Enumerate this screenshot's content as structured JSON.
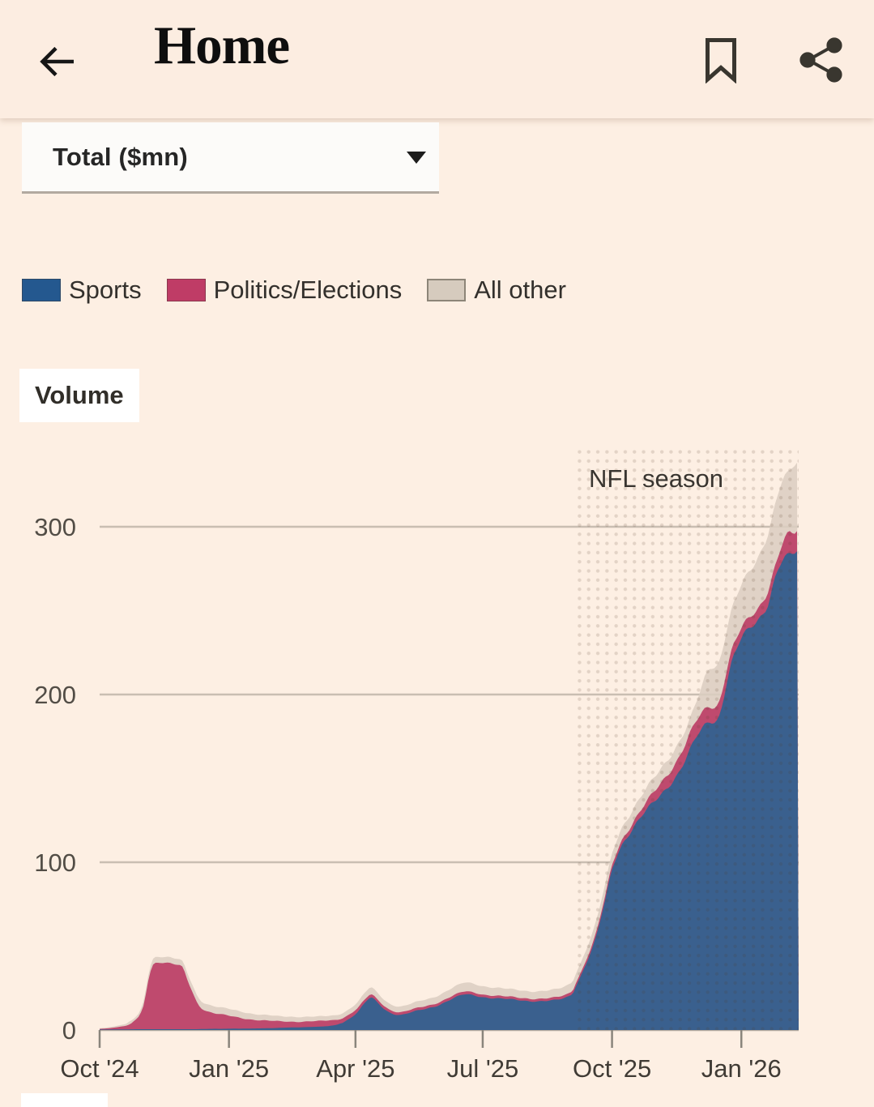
{
  "header": {
    "title": "Home"
  },
  "dropdown": {
    "value": "Total ($mn)"
  },
  "chart_data": {
    "type": "area",
    "stacked": true,
    "title": "Volume",
    "units_selector": "Total ($mn)",
    "annotation": "NFL season",
    "legend_position": "top",
    "grid": "horizontal",
    "background": "#fdefe3",
    "x_ticks": [
      "Oct '24",
      "Jan '25",
      "Apr '25",
      "Jul '25",
      "Oct '25",
      "Jan '26"
    ],
    "x_tick_t": [
      0,
      0.185,
      0.366,
      0.548,
      0.733,
      0.918
    ],
    "y_ticks": [
      0,
      100,
      200,
      300
    ],
    "ylim": [
      0,
      349
    ],
    "nfl_region_t": [
      0.68,
      1.0
    ],
    "series": [
      {
        "name": "Sports",
        "color": "#3a608e",
        "legend_color": "#24588f"
      },
      {
        "name": "Politics/Elections",
        "color": "#bf4a6e",
        "legend_color": "#bf3c66"
      },
      {
        "name": "All other",
        "color": "rgba(219,206,193,0.87)",
        "legend_color": "#d6cbbe",
        "legend_border": "#8d8578"
      }
    ],
    "columns": [
      "t",
      "sports",
      "politics_elections",
      "all_other"
    ],
    "points": [
      [
        0,
        0.3,
        0.4,
        0.4
      ],
      [
        0.014,
        0.3,
        0.8,
        0.6
      ],
      [
        0.028,
        0.4,
        1.5,
        0.9
      ],
      [
        0.042,
        0.4,
        2.8,
        1.2
      ],
      [
        0.056,
        0.5,
        7,
        1.8
      ],
      [
        0.063,
        0.5,
        14,
        2.5
      ],
      [
        0.07,
        0.5,
        30,
        3
      ],
      [
        0.076,
        0.5,
        38.5,
        3.5
      ],
      [
        0.085,
        0.5,
        40.5,
        3.5
      ],
      [
        0.098,
        0.5,
        40,
        3.5
      ],
      [
        0.112,
        0.5,
        38.5,
        3.5
      ],
      [
        0.119,
        0.5,
        36.5,
        3.5
      ],
      [
        0.126,
        0.5,
        29,
        4
      ],
      [
        0.133,
        0.5,
        22,
        4.2
      ],
      [
        0.14,
        0.5,
        15.5,
        4.2
      ],
      [
        0.147,
        0.6,
        12,
        4.2
      ],
      [
        0.161,
        0.7,
        9.5,
        4.2
      ],
      [
        0.175,
        0.7,
        8.2,
        4
      ],
      [
        0.189,
        0.8,
        7,
        4
      ],
      [
        0.203,
        0.8,
        6.2,
        3.8
      ],
      [
        0.217,
        0.9,
        5.5,
        3.6
      ],
      [
        0.231,
        1,
        5,
        3.4
      ],
      [
        0.245,
        1.1,
        4.5,
        3.2
      ],
      [
        0.258,
        1.3,
        4,
        3
      ],
      [
        0.272,
        1.5,
        3.7,
        3
      ],
      [
        0.286,
        1.6,
        3.5,
        2.9
      ],
      [
        0.3,
        1.8,
        3.2,
        2.8
      ],
      [
        0.314,
        2,
        3,
        2.7
      ],
      [
        0.328,
        2.4,
        3,
        2.7
      ],
      [
        0.342,
        3.5,
        2.8,
        2.9
      ],
      [
        0.356,
        6.5,
        2.6,
        3.2
      ],
      [
        0.37,
        11,
        2.4,
        3.6
      ],
      [
        0.379,
        16,
        2,
        4
      ],
      [
        0.388,
        19.5,
        1.8,
        4.2
      ],
      [
        0.398,
        16.5,
        1.8,
        4
      ],
      [
        0.407,
        13,
        1.8,
        3.8
      ],
      [
        0.416,
        10.5,
        1.7,
        3.6
      ],
      [
        0.43,
        9,
        1.6,
        3.4
      ],
      [
        0.444,
        10,
        1.6,
        3.5
      ],
      [
        0.458,
        11.5,
        1.6,
        3.8
      ],
      [
        0.472,
        13,
        1.6,
        4
      ],
      [
        0.486,
        15,
        1.6,
        4.3
      ],
      [
        0.499,
        17.5,
        1.7,
        4.6
      ],
      [
        0.513,
        20,
        1.7,
        5
      ],
      [
        0.523,
        21.5,
        1.7,
        5.3
      ],
      [
        0.537,
        21,
        1.7,
        5.2
      ],
      [
        0.55,
        20,
        1.6,
        5
      ],
      [
        0.564,
        19,
        1.6,
        4.8
      ],
      [
        0.578,
        18.3,
        1.5,
        4.6
      ],
      [
        0.592,
        17.8,
        1.5,
        4.5
      ],
      [
        0.606,
        17.4,
        1.5,
        4.4
      ],
      [
        0.62,
        17,
        1.5,
        4.4
      ],
      [
        0.634,
        17,
        1.5,
        4.5
      ],
      [
        0.648,
        17.5,
        1.6,
        4.7
      ],
      [
        0.662,
        19,
        1.7,
        5
      ],
      [
        0.676,
        22,
        1.8,
        5.5
      ],
      [
        0.682,
        28,
        1.9,
        5.8
      ],
      [
        0.696,
        40,
        2,
        6.3
      ],
      [
        0.71,
        55,
        2.2,
        6.8
      ],
      [
        0.724,
        78,
        2.4,
        7
      ],
      [
        0.734,
        97,
        2.5,
        7
      ],
      [
        0.747,
        110,
        2.8,
        7.4
      ],
      [
        0.761,
        118,
        3.2,
        7.8
      ],
      [
        0.775,
        126,
        4,
        8
      ],
      [
        0.789,
        134,
        5.5,
        8.3
      ],
      [
        0.803,
        142,
        7,
        8.7
      ],
      [
        0.817,
        149,
        8,
        9
      ],
      [
        0.831,
        156,
        9,
        9
      ],
      [
        0.845,
        167,
        9.5,
        8.5
      ],
      [
        0.859,
        178,
        9.5,
        14
      ],
      [
        0.872,
        184,
        9,
        23
      ],
      [
        0.886,
        186,
        8.5,
        24
      ],
      [
        0.9,
        210,
        7.5,
        24
      ],
      [
        0.912,
        225,
        6.5,
        25
      ],
      [
        0.919,
        233,
        6,
        26
      ],
      [
        0.933,
        242,
        6.5,
        28
      ],
      [
        0.944,
        248,
        7,
        31
      ],
      [
        0.956,
        256,
        8,
        34
      ],
      [
        0.968,
        272,
        7,
        37
      ],
      [
        0.977,
        280,
        10,
        38
      ],
      [
        0.986,
        283,
        13,
        36
      ],
      [
        0.993,
        285,
        12,
        40
      ],
      [
        1,
        287,
        12,
        41
      ]
    ]
  }
}
